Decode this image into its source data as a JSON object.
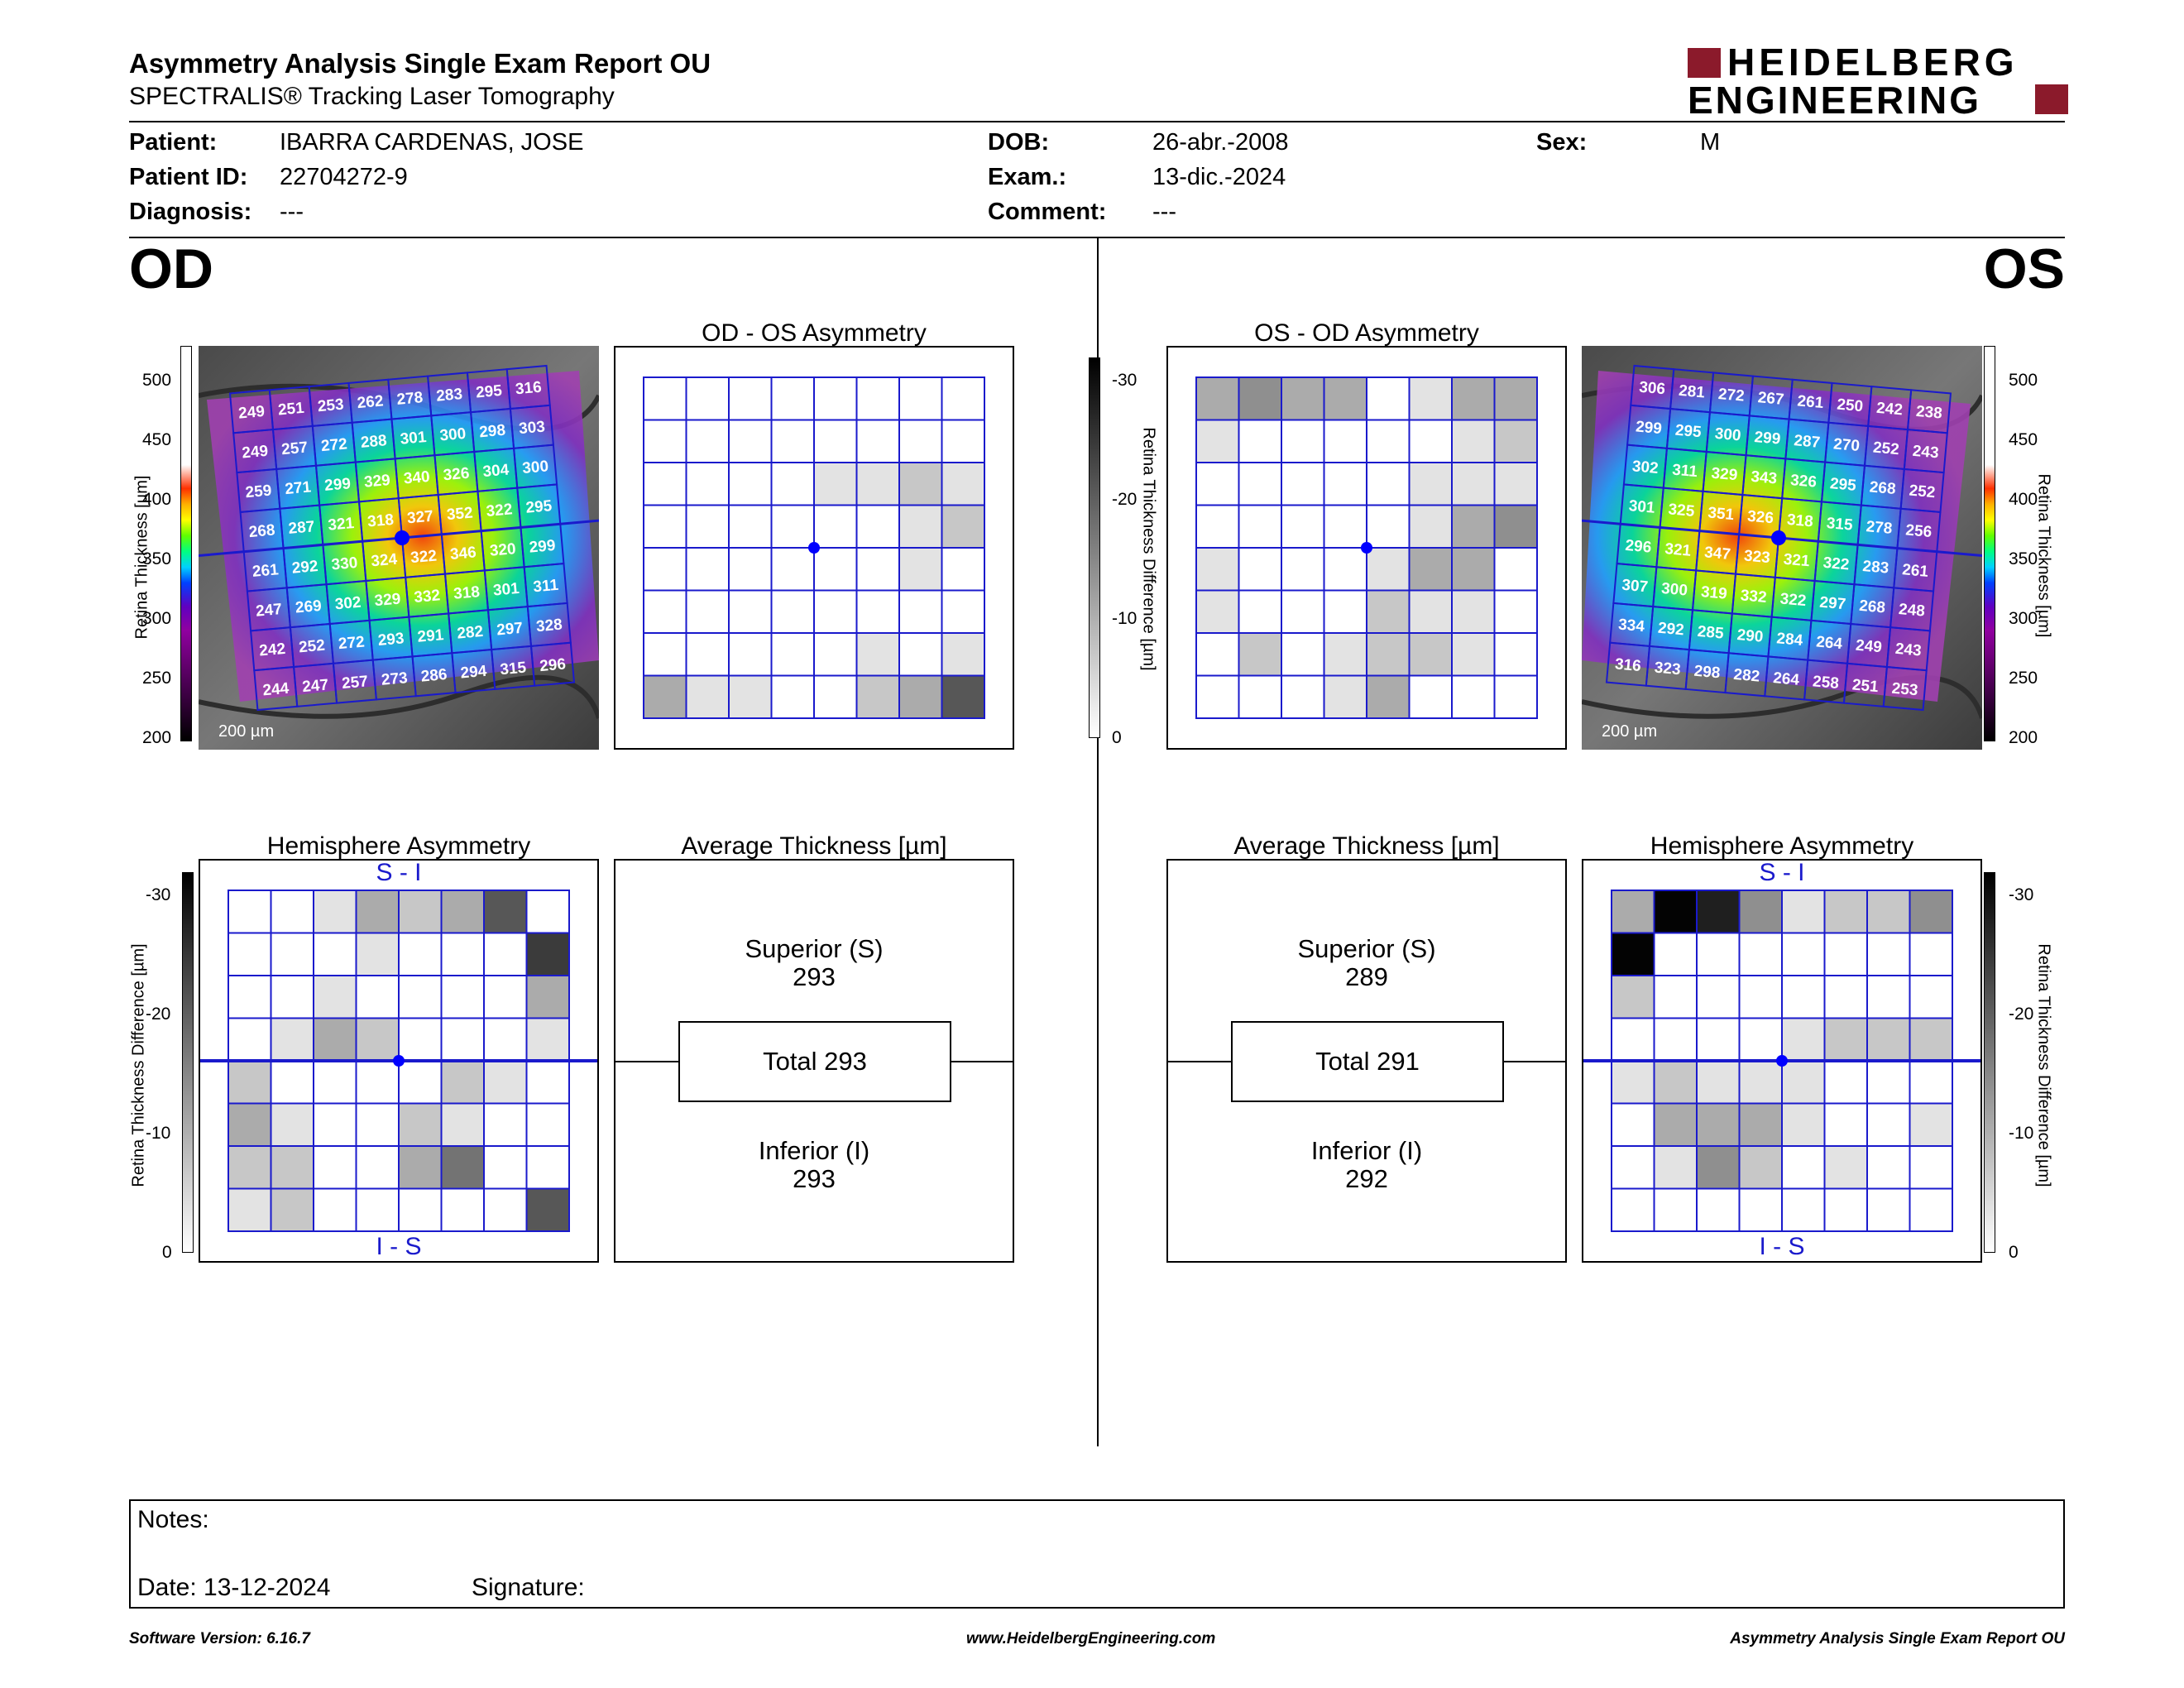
{
  "header": {
    "title": "Asymmetry Analysis Single Exam Report OU",
    "subtitle": "SPECTRALIS® Tracking Laser Tomography",
    "logo_line1": "HEIDELBERG",
    "logo_line2": "ENGINEERING",
    "logo_color": "#8b1a2b"
  },
  "patient": {
    "patient_label": "Patient:",
    "patient_value": "IBARRA CARDENAS, JOSE",
    "id_label": "Patient ID:",
    "id_value": "22704272-9",
    "diagnosis_label": "Diagnosis:",
    "diagnosis_value": "---",
    "dob_label": "DOB:",
    "dob_value": "26-abr.-2008",
    "exam_label": "Exam.:",
    "exam_value": "13-dic.-2024",
    "comment_label": "Comment:",
    "comment_value": "---",
    "sex_label": "Sex:",
    "sex_value": "M"
  },
  "od": {
    "eye_label": "OD",
    "thickness_axis_label": "Retina Thickness [µm]",
    "thickness_ticks": [
      "500",
      "450",
      "400",
      "350",
      "300",
      "250",
      "200"
    ],
    "scale_label": "200 µm",
    "grid_values": [
      [
        249,
        251,
        253,
        262,
        278,
        283,
        295,
        316
      ],
      [
        249,
        257,
        272,
        288,
        301,
        300,
        298,
        303
      ],
      [
        259,
        271,
        299,
        329,
        340,
        326,
        304,
        300
      ],
      [
        268,
        287,
        321,
        318,
        327,
        352,
        322,
        295
      ],
      [
        261,
        292,
        330,
        324,
        322,
        346,
        320,
        299
      ],
      [
        247,
        269,
        302,
        329,
        332,
        318,
        301,
        311
      ],
      [
        242,
        252,
        272,
        293,
        291,
        282,
        297,
        328
      ],
      [
        244,
        247,
        257,
        273,
        286,
        294,
        315,
        296
      ]
    ],
    "asym_title": "OD - OS Asymmetry",
    "asym_shades": [
      [
        0,
        0,
        0,
        0,
        0,
        0,
        0,
        0
      ],
      [
        0,
        0,
        0,
        0,
        0,
        0,
        0,
        0
      ],
      [
        0,
        0,
        0,
        0,
        1,
        1,
        2,
        1
      ],
      [
        0,
        0,
        0,
        0,
        0,
        0,
        1,
        2
      ],
      [
        0,
        0,
        0,
        0,
        0,
        0,
        1,
        0
      ],
      [
        0,
        0,
        0,
        0,
        0,
        0,
        0,
        0
      ],
      [
        0,
        0,
        0,
        0,
        0,
        1,
        0,
        1
      ],
      [
        3,
        1,
        1,
        0,
        0,
        2,
        3,
        6
      ]
    ],
    "hemi_title": "Hemisphere Asymmetry",
    "hemi_top": "S - I",
    "hemi_bottom": "I - S",
    "hemi_shades": [
      [
        0,
        0,
        1,
        3,
        2,
        3,
        6,
        0
      ],
      [
        0,
        0,
        0,
        1,
        0,
        0,
        0,
        7
      ],
      [
        0,
        0,
        1,
        0,
        0,
        0,
        0,
        3
      ],
      [
        0,
        1,
        3,
        2,
        0,
        0,
        0,
        1
      ],
      [
        2,
        0,
        0,
        0,
        0,
        2,
        1,
        0
      ],
      [
        3,
        1,
        0,
        0,
        2,
        1,
        0,
        0
      ],
      [
        2,
        2,
        0,
        0,
        3,
        5,
        0,
        0
      ],
      [
        1,
        2,
        0,
        0,
        0,
        0,
        0,
        6
      ]
    ],
    "avg_title": "Average Thickness [µm]",
    "superior_label": "Superior (S)",
    "superior_value": "293",
    "total_label": "Total 293",
    "inferior_label": "Inferior (I)",
    "inferior_value": "293"
  },
  "os": {
    "eye_label": "OS",
    "thickness_axis_label": "Retina Thickness [µm]",
    "thickness_ticks": [
      "500",
      "450",
      "400",
      "350",
      "300",
      "250",
      "200"
    ],
    "scale_label": "200 µm",
    "grid_values": [
      [
        306,
        281,
        272,
        267,
        261,
        250,
        242,
        238
      ],
      [
        299,
        295,
        300,
        299,
        287,
        270,
        252,
        243
      ],
      [
        302,
        311,
        329,
        343,
        326,
        295,
        268,
        252
      ],
      [
        301,
        325,
        351,
        326,
        318,
        315,
        278,
        256
      ],
      [
        296,
        321,
        347,
        323,
        321,
        322,
        283,
        261
      ],
      [
        307,
        300,
        319,
        332,
        322,
        297,
        268,
        248
      ],
      [
        334,
        292,
        285,
        290,
        284,
        264,
        249,
        243
      ],
      [
        316,
        323,
        298,
        282,
        264,
        258,
        251,
        253
      ]
    ],
    "asym_title": "OS - OD Asymmetry",
    "asym_shades": [
      [
        3,
        4,
        3,
        3,
        0,
        1,
        3,
        3
      ],
      [
        1,
        0,
        0,
        0,
        0,
        0,
        1,
        2
      ],
      [
        0,
        0,
        0,
        0,
        0,
        1,
        1,
        1
      ],
      [
        0,
        0,
        0,
        0,
        0,
        1,
        3,
        4
      ],
      [
        1,
        0,
        0,
        0,
        1,
        3,
        3,
        0
      ],
      [
        1,
        0,
        0,
        0,
        2,
        1,
        1,
        0
      ],
      [
        0,
        2,
        0,
        1,
        2,
        2,
        1,
        0
      ],
      [
        0,
        0,
        0,
        1,
        3,
        0,
        0,
        0
      ]
    ],
    "hemi_title": "Hemisphere Asymmetry",
    "hemi_top": "S - I",
    "hemi_bottom": "I - S",
    "hemi_shades": [
      [
        3,
        9,
        8,
        4,
        1,
        2,
        2,
        4
      ],
      [
        9,
        0,
        0,
        0,
        0,
        0,
        0,
        0
      ],
      [
        2,
        0,
        0,
        0,
        0,
        0,
        0,
        0
      ],
      [
        0,
        0,
        0,
        0,
        1,
        2,
        2,
        2
      ],
      [
        1,
        2,
        1,
        1,
        1,
        0,
        0,
        0
      ],
      [
        0,
        3,
        3,
        3,
        1,
        0,
        0,
        1
      ],
      [
        0,
        1,
        4,
        2,
        0,
        1,
        0,
        0
      ],
      [
        0,
        0,
        0,
        0,
        0,
        0,
        0,
        0
      ]
    ],
    "avg_title": "Average Thickness [µm]",
    "superior_label": "Superior (S)",
    "superior_value": "289",
    "total_label": "Total 291",
    "inferior_label": "Inferior (I)",
    "inferior_value": "292"
  },
  "diff_scale": {
    "axis_label": "Retina Thickness Difference [µm]",
    "ticks": [
      "-30",
      "-20",
      "-10",
      "0"
    ]
  },
  "notes": {
    "notes_label": "Notes:",
    "date_label": "Date: 13-12-2024",
    "signature_label": "Signature:"
  },
  "footer": {
    "software": "Software Version: 6.16.7",
    "website": "www.HeidelbergEngineering.com",
    "report_name": "Asymmetry Analysis Single Exam Report OU"
  },
  "colors": {
    "grid_blue": "#1a1acc",
    "fovea_blue": "#0000ff"
  }
}
